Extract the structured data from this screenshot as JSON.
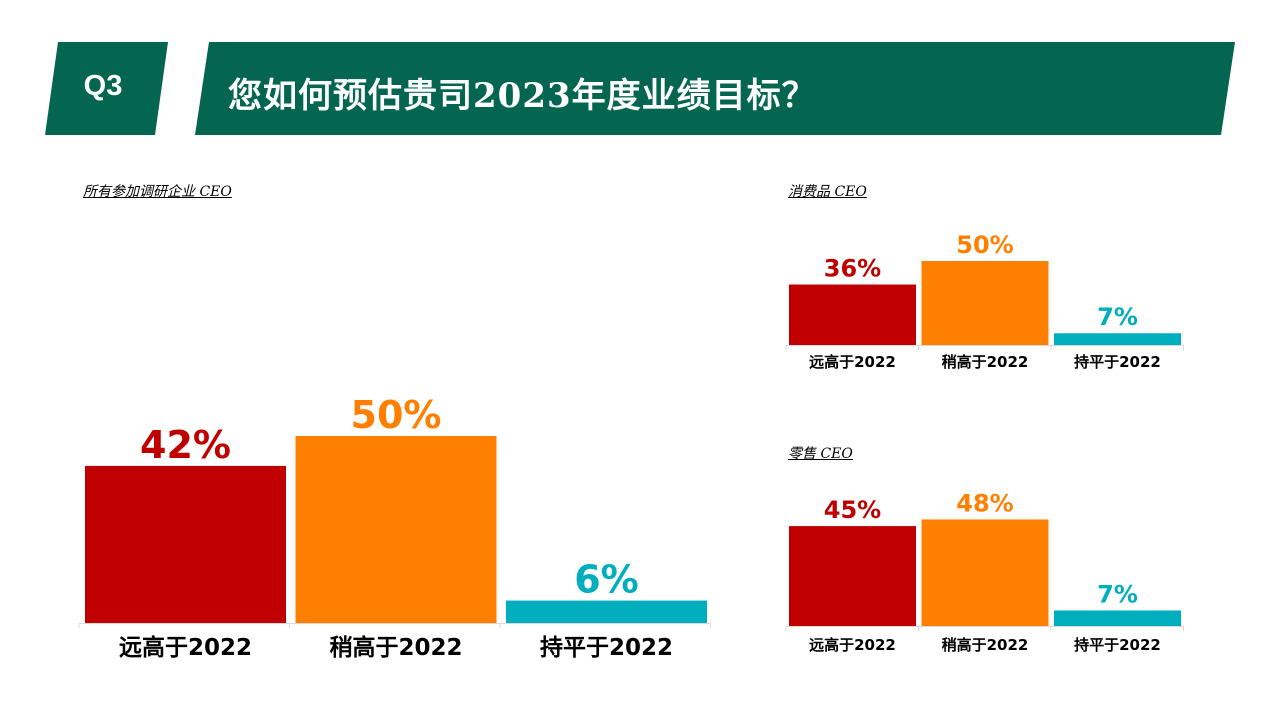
{
  "header": {
    "question": "Q3",
    "title": "您如何预估贵司2023年度业绩目标？",
    "color": "#046650"
  },
  "colors": {
    "far_higher": "#C00000",
    "slightly_higher": "#FF8000",
    "flat": "#00AEBE"
  },
  "chart_data": [
    {
      "type": "bar",
      "title": "所有参加调研企业 CEO",
      "categories": [
        "远高于2022",
        "稍高于2022",
        "持平于2022"
      ],
      "values": [
        42,
        50,
        6
      ],
      "unit": "%"
    },
    {
      "type": "bar",
      "title": "消费品 CEO",
      "categories": [
        "远高于2022",
        "稍高于2022",
        "持平于2022"
      ],
      "values": [
        36,
        50,
        7
      ],
      "unit": "%"
    },
    {
      "type": "bar",
      "title": "零售 CEO",
      "categories": [
        "远高于2022",
        "稍高于2022",
        "持平于2022"
      ],
      "values": [
        45,
        48,
        7
      ],
      "unit": "%"
    }
  ]
}
